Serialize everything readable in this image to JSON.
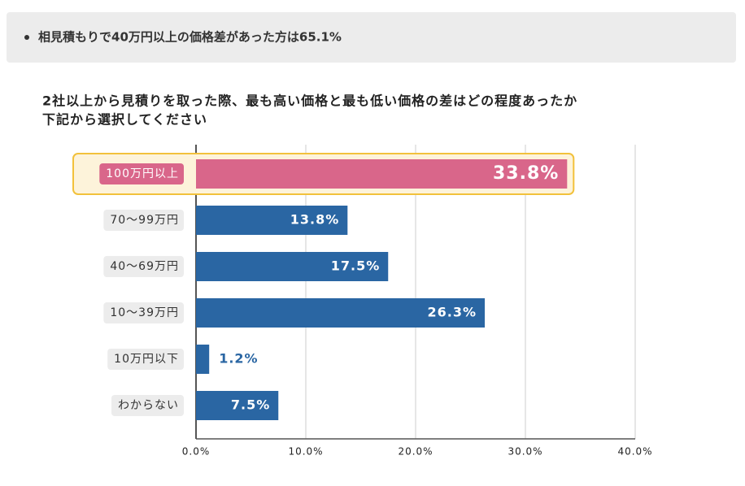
{
  "header": {
    "text": "相見積もりで40万円以上の価格差があった方は65.1%"
  },
  "chart_data": {
    "type": "hbar",
    "title_lines": [
      "2社以上から見積りを取った際、最も高い価格と最も低い価格の差はどの程度あったか",
      "下記から選択してください"
    ],
    "categories": [
      "100万円以上",
      "70〜99万円",
      "40〜69万円",
      "10〜39万円",
      "10万円以下",
      "わからない"
    ],
    "values": [
      33.8,
      13.8,
      17.5,
      26.3,
      1.2,
      7.5
    ],
    "value_labels": [
      "33.8%",
      "13.8%",
      "17.5%",
      "26.3%",
      "1.2%",
      "7.5%"
    ],
    "colors": [
      "#d9668a",
      "#2a66a3",
      "#2a66a3",
      "#2a66a3",
      "#2a66a3",
      "#2a66a3"
    ],
    "highlight": [
      true,
      false,
      false,
      false,
      false,
      false
    ],
    "highlight_color": "#f2c13b",
    "xlim": [
      0,
      40
    ],
    "xticks": [
      {
        "value": 0,
        "label": "0.0%"
      },
      {
        "value": 10,
        "label": "10.0%"
      },
      {
        "value": 20,
        "label": "20.0%"
      },
      {
        "value": 30,
        "label": "30.0%"
      },
      {
        "value": 40,
        "label": "40.0%"
      }
    ],
    "grid": true
  }
}
